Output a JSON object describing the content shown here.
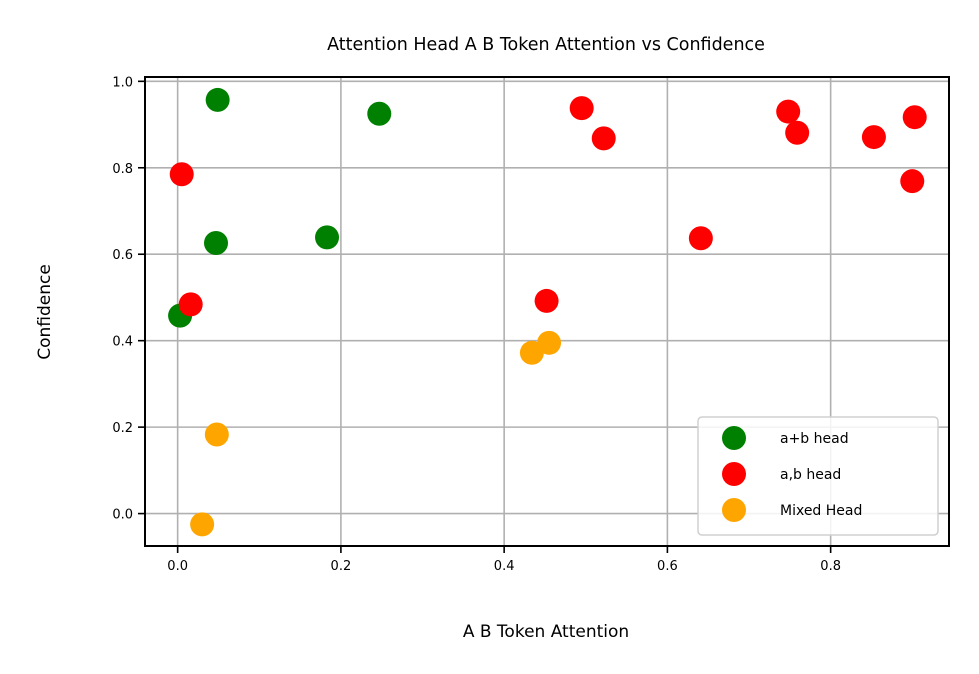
{
  "chart_data": {
    "type": "scatter",
    "title": "Attention Head A B Token Attention vs Confidence",
    "xlabel": "A B Token Attention",
    "ylabel": "Confidence",
    "xlim": [
      -0.04,
      0.945
    ],
    "ylim": [
      -0.075,
      1.01
    ],
    "xticks": [
      0.0,
      0.2,
      0.4,
      0.6,
      0.8
    ],
    "yticks": [
      0.0,
      0.2,
      0.4,
      0.6,
      0.8,
      1.0
    ],
    "xtick_labels": [
      "0.0",
      "0.2",
      "0.4",
      "0.6",
      "0.8"
    ],
    "ytick_labels": [
      "0.0",
      "0.2",
      "0.4",
      "0.6",
      "0.8",
      "1.0"
    ],
    "grid": true,
    "legend_position": "lower-right",
    "series": [
      {
        "name": "a+b head",
        "color": "#008000",
        "points": [
          {
            "x": 0.049,
            "y": 0.957
          },
          {
            "x": 0.247,
            "y": 0.925
          },
          {
            "x": 0.047,
            "y": 0.626
          },
          {
            "x": 0.183,
            "y": 0.639
          },
          {
            "x": 0.003,
            "y": 0.458
          }
        ]
      },
      {
        "name": "a,b head",
        "color": "#ff0000",
        "points": [
          {
            "x": 0.005,
            "y": 0.785
          },
          {
            "x": 0.016,
            "y": 0.484
          },
          {
            "x": 0.495,
            "y": 0.938
          },
          {
            "x": 0.522,
            "y": 0.868
          },
          {
            "x": 0.452,
            "y": 0.492
          },
          {
            "x": 0.641,
            "y": 0.637
          },
          {
            "x": 0.748,
            "y": 0.93
          },
          {
            "x": 0.759,
            "y": 0.881
          },
          {
            "x": 0.853,
            "y": 0.871
          },
          {
            "x": 0.903,
            "y": 0.917
          },
          {
            "x": 0.9,
            "y": 0.769
          }
        ]
      },
      {
        "name": "Mixed Head",
        "color": "#ffa500",
        "points": [
          {
            "x": 0.048,
            "y": 0.183
          },
          {
            "x": 0.03,
            "y": -0.025
          },
          {
            "x": 0.434,
            "y": 0.372
          },
          {
            "x": 0.455,
            "y": 0.395
          }
        ]
      }
    ]
  }
}
